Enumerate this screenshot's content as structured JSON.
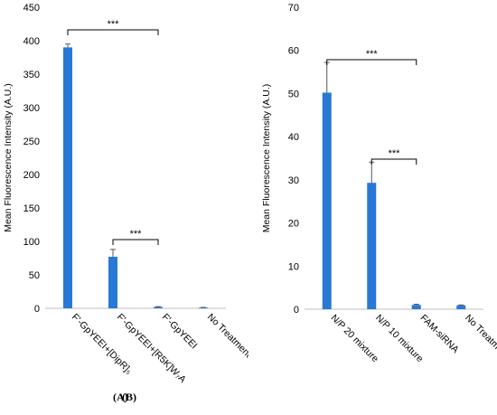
{
  "chart_data": [
    {
      "type": "bar",
      "panel_label": "(A)",
      "categories": [
        "F'-GpYEEI+[DipR]₅",
        "F'-GpYEEI+[R5K]W₇A",
        "F'-GpYEEI",
        "No Treatment"
      ],
      "values": [
        390,
        77,
        2,
        1
      ],
      "errors": [
        5,
        11,
        0.5,
        0.3
      ],
      "ylabel": "Mean Fluorescence Intensity (A.U.)",
      "ylim": [
        0,
        450
      ],
      "yticks": [
        0,
        50,
        100,
        150,
        200,
        250,
        300,
        350,
        400,
        450
      ],
      "significance": [
        {
          "from": 0,
          "to": 2,
          "label": "***"
        },
        {
          "from": 1,
          "to": 2,
          "label": "***"
        }
      ],
      "bar_color": "#2878d6"
    },
    {
      "type": "bar",
      "panel_label": "(B)",
      "categories": [
        "N/P 20 mixture",
        "N/P 10 mixture",
        "FAM-siRNA",
        "No Treatment"
      ],
      "values": [
        50.2,
        29.3,
        1.0,
        0.9
      ],
      "errors": [
        7.0,
        4.8,
        0.15,
        0.1
      ],
      "ylabel": "Mean Fluorescence Intensity (A.U.)",
      "ylim": [
        0,
        70
      ],
      "yticks": [
        0,
        10,
        20,
        30,
        40,
        50,
        60,
        70
      ],
      "significance": [
        {
          "from": 0,
          "to": 2,
          "label": "***"
        },
        {
          "from": 1,
          "to": 2,
          "label": "***"
        }
      ],
      "bar_color": "#2878d6"
    }
  ]
}
